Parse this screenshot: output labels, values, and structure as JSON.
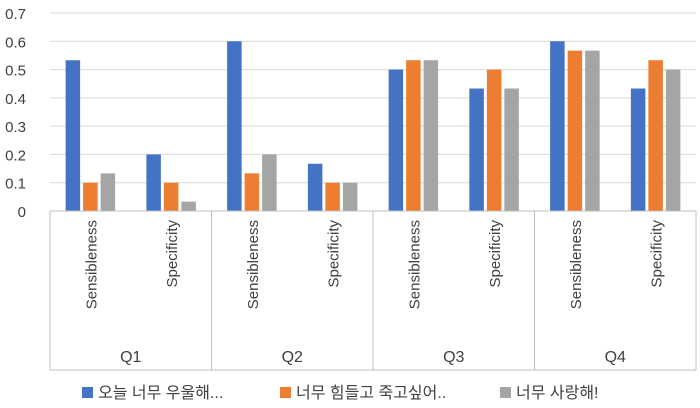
{
  "chart_data": {
    "type": "bar",
    "title": "",
    "xlabel": "",
    "ylabel": "",
    "ylim": [
      0,
      0.7
    ],
    "yticks": [
      0,
      0.1,
      0.2,
      0.3,
      0.4,
      0.5,
      0.6,
      0.7
    ],
    "ytick_labels": [
      "0",
      "0.1",
      "0.2",
      "0.3",
      "0.4",
      "0.5",
      "0.6",
      "0.7"
    ],
    "grid": true,
    "legend_position": "bottom",
    "groups": [
      {
        "label": "Q1",
        "categories": [
          "Sensibleness",
          "Specificity"
        ]
      },
      {
        "label": "Q2",
        "categories": [
          "Sensibleness",
          "Specificity"
        ]
      },
      {
        "label": "Q3",
        "categories": [
          "Sensibleness",
          "Specificity"
        ]
      },
      {
        "label": "Q4",
        "categories": [
          "Sensibleness",
          "Specificity"
        ]
      }
    ],
    "categories": [
      "Q1 Sensibleness",
      "Q1 Specificity",
      "Q2 Sensibleness",
      "Q2 Specificity",
      "Q3 Sensibleness",
      "Q3 Specificity",
      "Q4 Sensibleness",
      "Q4 Specificity"
    ],
    "series": [
      {
        "name": "오늘 너무 우울해...",
        "color": "#4472c4",
        "values": [
          0.533,
          0.2,
          0.6,
          0.167,
          0.5,
          0.433,
          0.6,
          0.433
        ]
      },
      {
        "name": "너무 힘들고 죽고싶어..",
        "color": "#ed7d31",
        "values": [
          0.1,
          0.1,
          0.133,
          0.1,
          0.533,
          0.5,
          0.567,
          0.533
        ]
      },
      {
        "name": "너무 사랑해!",
        "color": "#a5a5a5",
        "values": [
          0.133,
          0.033,
          0.2,
          0.1,
          0.533,
          0.433,
          0.567,
          0.5
        ]
      }
    ]
  }
}
